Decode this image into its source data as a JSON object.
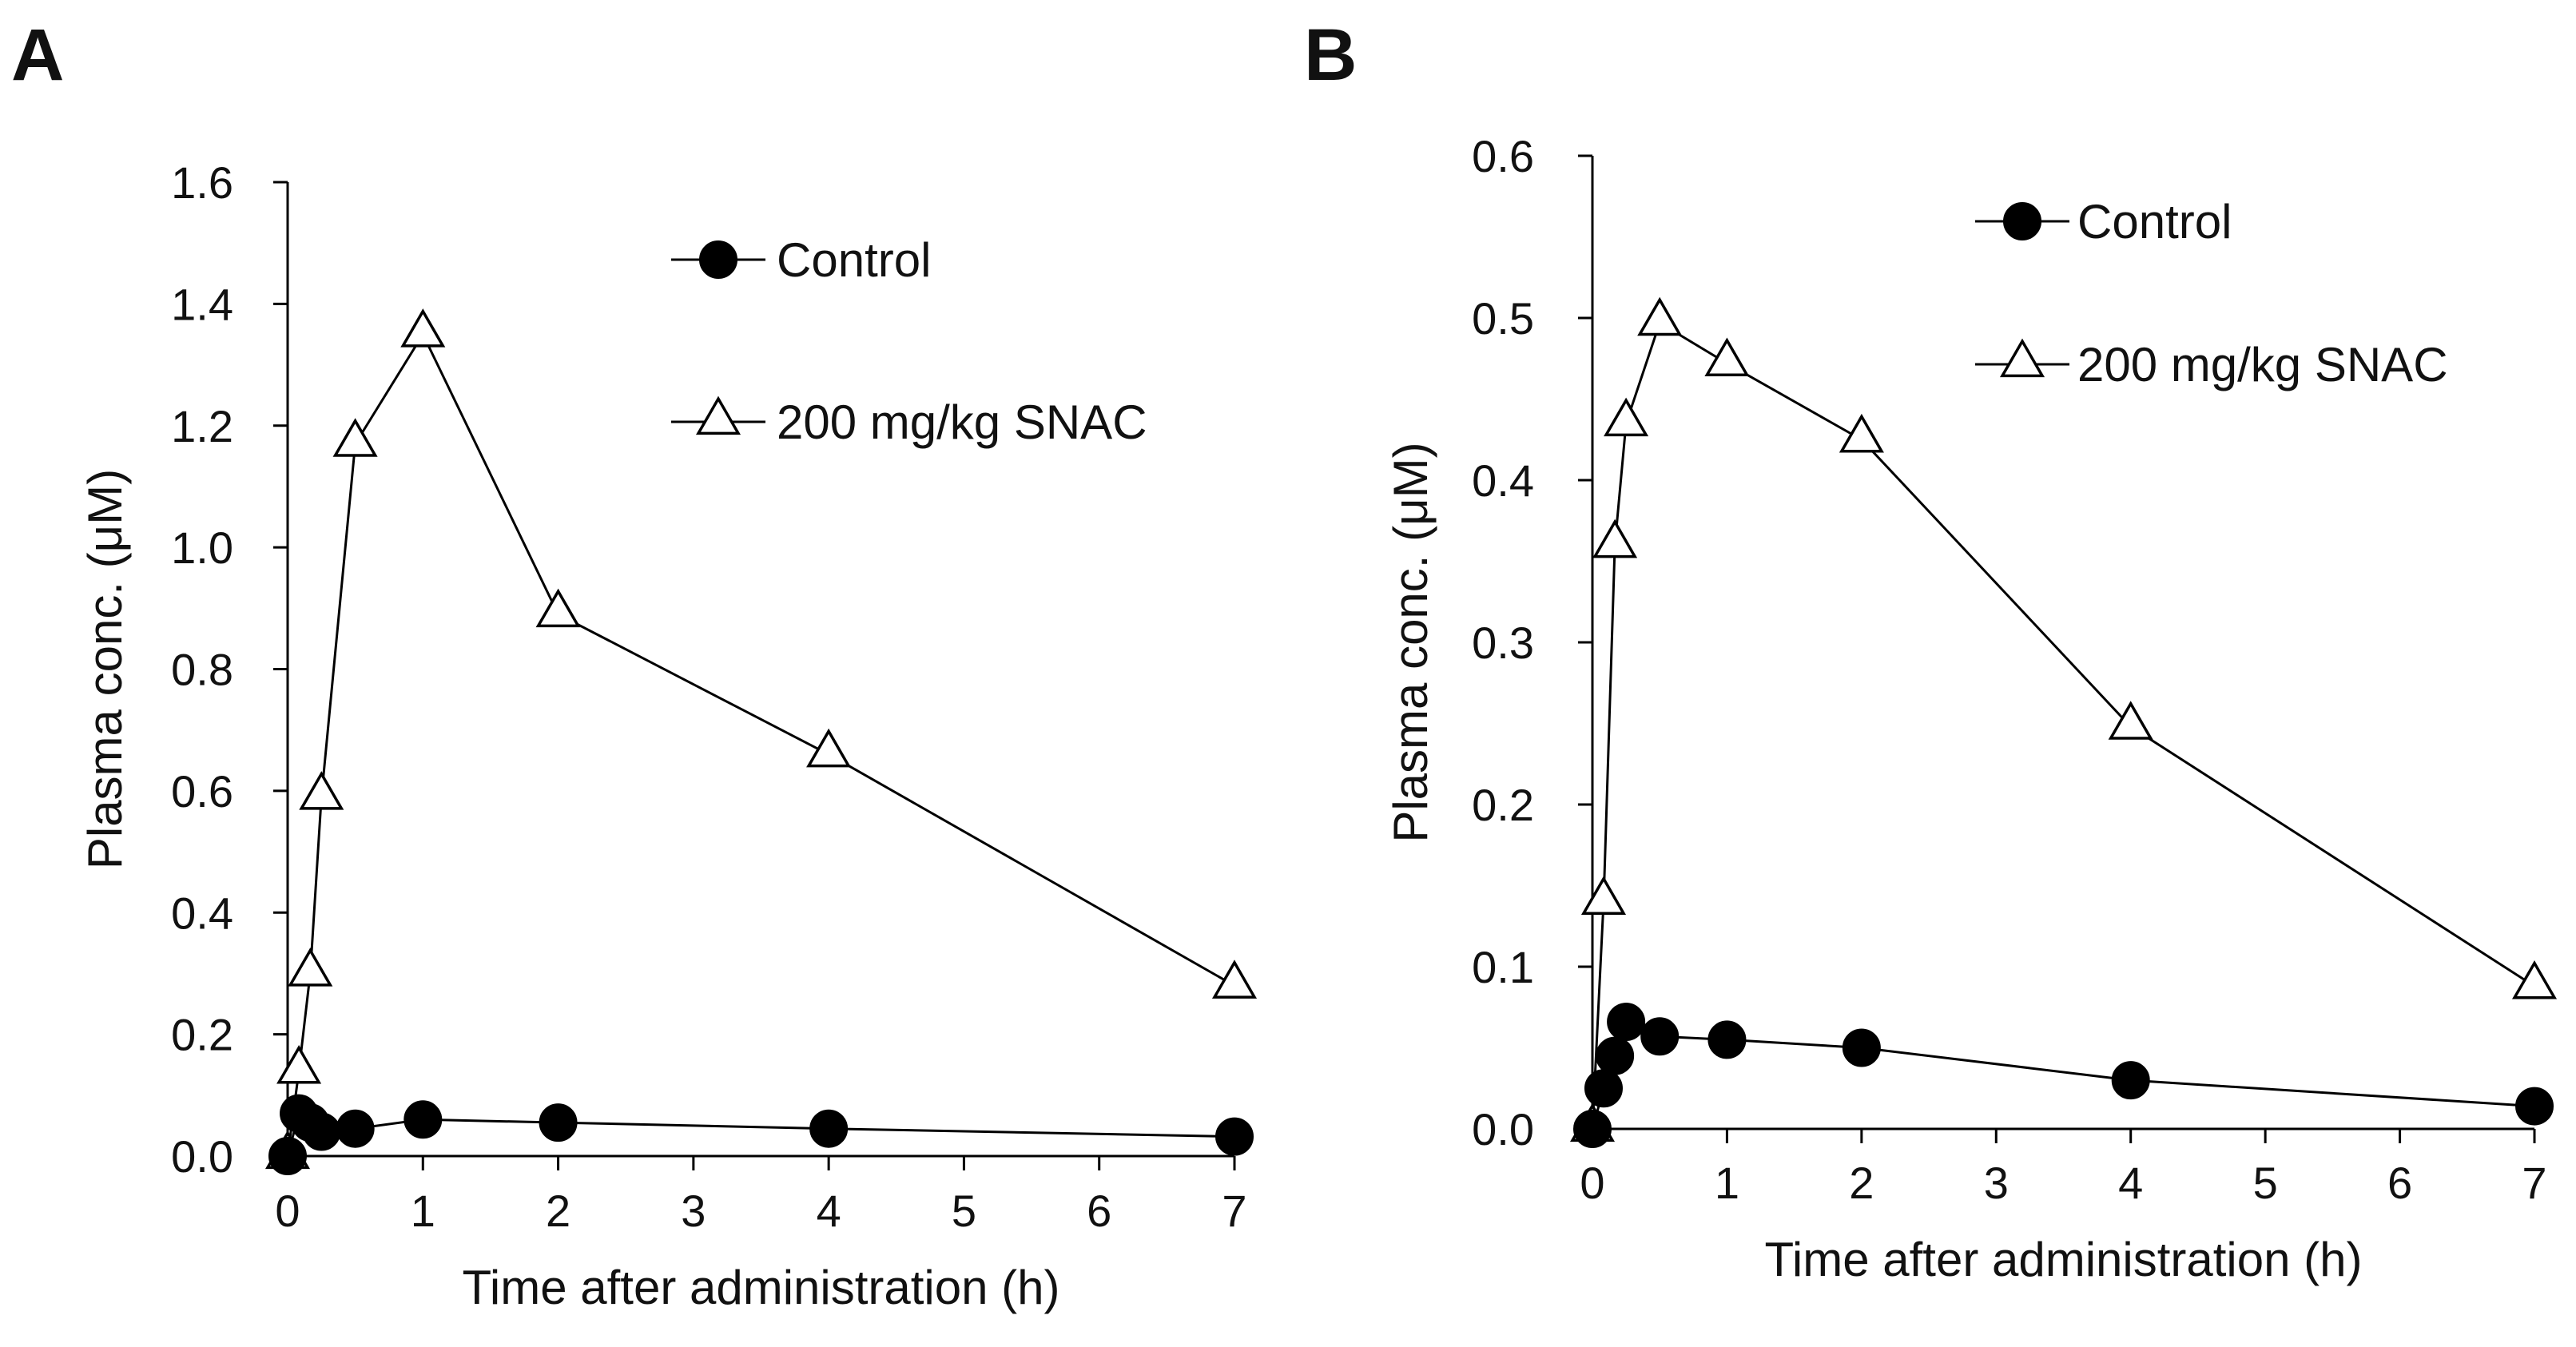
{
  "chart_data": [
    {
      "panel": "A",
      "type": "line",
      "xlabel": "Time after administration (h)",
      "ylabel": "Plasma conc. (μM)",
      "xlim": [
        0,
        7
      ],
      "ylim": [
        0,
        1.6
      ],
      "xticks": [
        0,
        1,
        2,
        3,
        4,
        5,
        6,
        7
      ],
      "yticks": [
        0,
        0.2,
        0.4,
        0.6,
        0.8,
        1.0,
        1.2,
        1.4,
        1.6
      ],
      "ytick_labels": [
        "0.0",
        "0.2",
        "0.4",
        "0.6",
        "0.8",
        "1.0",
        "1.2",
        "1.4",
        "1.6"
      ],
      "grid": false,
      "legend_position": "top-right",
      "series": [
        {
          "name": "Control",
          "marker": "filled-circle",
          "x": [
            0,
            0.083,
            0.167,
            0.25,
            0.5,
            1,
            2,
            4,
            7
          ],
          "y": [
            0.0,
            0.07,
            0.055,
            0.04,
            0.045,
            0.06,
            0.055,
            0.045,
            0.032
          ]
        },
        {
          "name": "200 mg/kg SNAC",
          "marker": "open-triangle",
          "x": [
            0,
            0.083,
            0.167,
            0.25,
            0.5,
            1,
            2,
            4,
            7
          ],
          "y": [
            0.0,
            0.14,
            0.3,
            0.59,
            1.17,
            1.35,
            0.89,
            0.66,
            0.28
          ]
        }
      ]
    },
    {
      "panel": "B",
      "type": "line",
      "xlabel": "Time after administration (h)",
      "ylabel": "Plasma conc. (μM)",
      "xlim": [
        0,
        7
      ],
      "ylim": [
        0,
        0.6
      ],
      "xticks": [
        0,
        1,
        2,
        3,
        4,
        5,
        6,
        7
      ],
      "yticks": [
        0,
        0.1,
        0.2,
        0.3,
        0.4,
        0.5,
        0.6
      ],
      "ytick_labels": [
        "0.0",
        "0.1",
        "0.2",
        "0.3",
        "0.4",
        "0.5",
        "0.6"
      ],
      "grid": false,
      "legend_position": "top-right",
      "series": [
        {
          "name": "Control",
          "marker": "filled-circle",
          "x": [
            0,
            0.083,
            0.167,
            0.25,
            0.5,
            1,
            2,
            4,
            7
          ],
          "y": [
            0.0,
            0.025,
            0.045,
            0.066,
            0.057,
            0.055,
            0.05,
            0.03,
            0.014
          ]
        },
        {
          "name": "200 mg/kg SNAC",
          "marker": "open-triangle",
          "x": [
            0,
            0.083,
            0.167,
            0.25,
            0.5,
            1,
            2,
            4,
            7
          ],
          "y": [
            0.0,
            0.14,
            0.36,
            0.435,
            0.497,
            0.472,
            0.425,
            0.248,
            0.088
          ]
        }
      ]
    }
  ]
}
